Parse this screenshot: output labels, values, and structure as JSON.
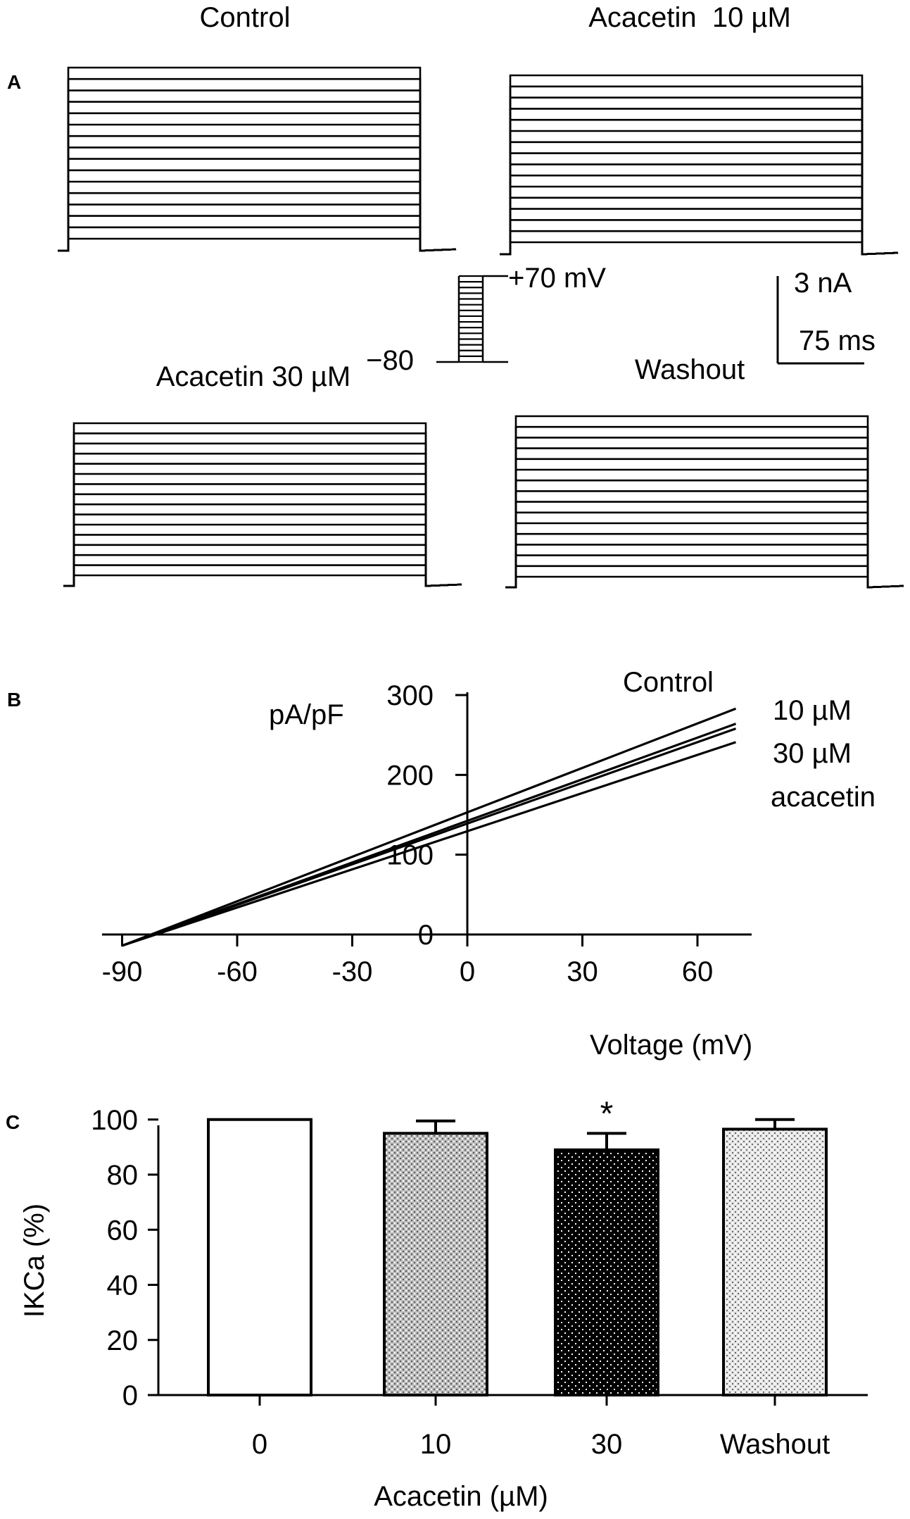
{
  "panels": {
    "a": "A",
    "b": "B",
    "c": "C"
  },
  "panel_a": {
    "trace_titles": [
      "Control",
      "Acacetin  10 µM",
      "Acacetin 30 µM",
      "Washout"
    ],
    "protocol": {
      "top": "+70 mV",
      "bottom": "−80"
    },
    "scalebar": {
      "current": "3 nA",
      "time": "75 ms"
    },
    "sweeps_per_family": 16
  },
  "chart_data": [
    {
      "type": "line",
      "panel": "B",
      "title": "",
      "xlabel": "Voltage (mV)",
      "ylabel": "pA/pF",
      "xlim": [
        -90,
        70
      ],
      "ylim": [
        -15,
        300
      ],
      "xticks": [
        -90,
        -60,
        -30,
        0,
        30,
        60
      ],
      "yticks": [
        0,
        100,
        200,
        300
      ],
      "legend_labels": [
        "Control",
        "10 µM",
        "30 µM",
        "acacetin"
      ],
      "grid": false,
      "series": [
        {
          "x": [
            -90,
            70
          ],
          "y": [
            -14,
            283
          ]
        },
        {
          "x": [
            -90,
            70
          ],
          "y": [
            -14,
            264
          ]
        },
        {
          "x": [
            -90,
            70
          ],
          "y": [
            -14,
            258
          ]
        },
        {
          "x": [
            -90,
            70
          ],
          "y": [
            -14,
            241
          ]
        }
      ]
    },
    {
      "type": "bar",
      "panel": "C",
      "title": "",
      "xlabel": "Acacetin (µM)",
      "ylabel": "IKCa (%)",
      "ylim": [
        0,
        100
      ],
      "yticks": [
        0,
        20,
        40,
        60,
        80,
        100
      ],
      "categories": [
        "0",
        "10",
        "30",
        "Washout"
      ],
      "values": [
        100,
        95,
        89,
        96.5
      ],
      "errors": [
        0,
        4.5,
        6,
        3.5
      ],
      "significance": [
        "",
        "",
        "*",
        ""
      ],
      "fills": [
        "white",
        "light-checker",
        "black-dotted",
        "light-checker"
      ],
      "grid": false
    }
  ]
}
